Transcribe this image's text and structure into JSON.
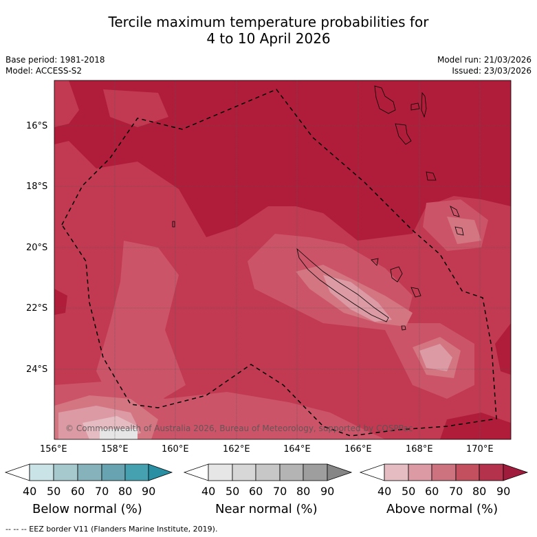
{
  "title": {
    "line1": "Tercile maximum temperature probabilities for",
    "line2": "4 to 10 April 2026"
  },
  "meta": {
    "base_period": "Base period: 1981-2018",
    "model": "Model: ACCESS-S2",
    "model_run": "Model run: 21/03/2026",
    "issued": "Issued: 23/03/2026"
  },
  "map": {
    "lat_labels": [
      "16°S",
      "18°S",
      "20°S",
      "22°S",
      "24°S"
    ],
    "lon_labels": [
      "156°E",
      "158°E",
      "160°E",
      "162°E",
      "164°E",
      "166°E",
      "168°E",
      "170°E"
    ],
    "copyright": "© Commonwealth of Australia 2026, Bureau of Meteorology, supported by COSPPac",
    "colors": {
      "above_90": "#b01d3a",
      "above_80": "#c23a52",
      "above_70": "#cc5468",
      "above_60": "#d47582",
      "above_50": "#dc9aa4",
      "above_40": "#e6bcc3"
    }
  },
  "colorbars": [
    {
      "label": "Below normal (%)",
      "ticks": [
        "40",
        "50",
        "60",
        "70",
        "80",
        "90"
      ],
      "colors": [
        "#c9e3e7",
        "#a6c9ce",
        "#86b2bb",
        "#67a3b0",
        "#45a0b0",
        "#2a8fa3"
      ]
    },
    {
      "label": "Near normal (%)",
      "ticks": [
        "40",
        "50",
        "60",
        "70",
        "80",
        "90"
      ],
      "colors": [
        "#e6e6e6",
        "#d7d7d7",
        "#c7c7c7",
        "#b4b4b4",
        "#9e9e9e",
        "#868686"
      ]
    },
    {
      "label": "Above normal (%)",
      "ticks": [
        "40",
        "50",
        "60",
        "70",
        "80",
        "90"
      ],
      "colors": [
        "#e6bcc3",
        "#dc9aa4",
        "#cd7380",
        "#c2505f",
        "#b4324b",
        "#a01c3c"
      ]
    }
  ],
  "footer": "--  --  -- EEZ border V11 (Flanders Marine Institute, 2019)."
}
